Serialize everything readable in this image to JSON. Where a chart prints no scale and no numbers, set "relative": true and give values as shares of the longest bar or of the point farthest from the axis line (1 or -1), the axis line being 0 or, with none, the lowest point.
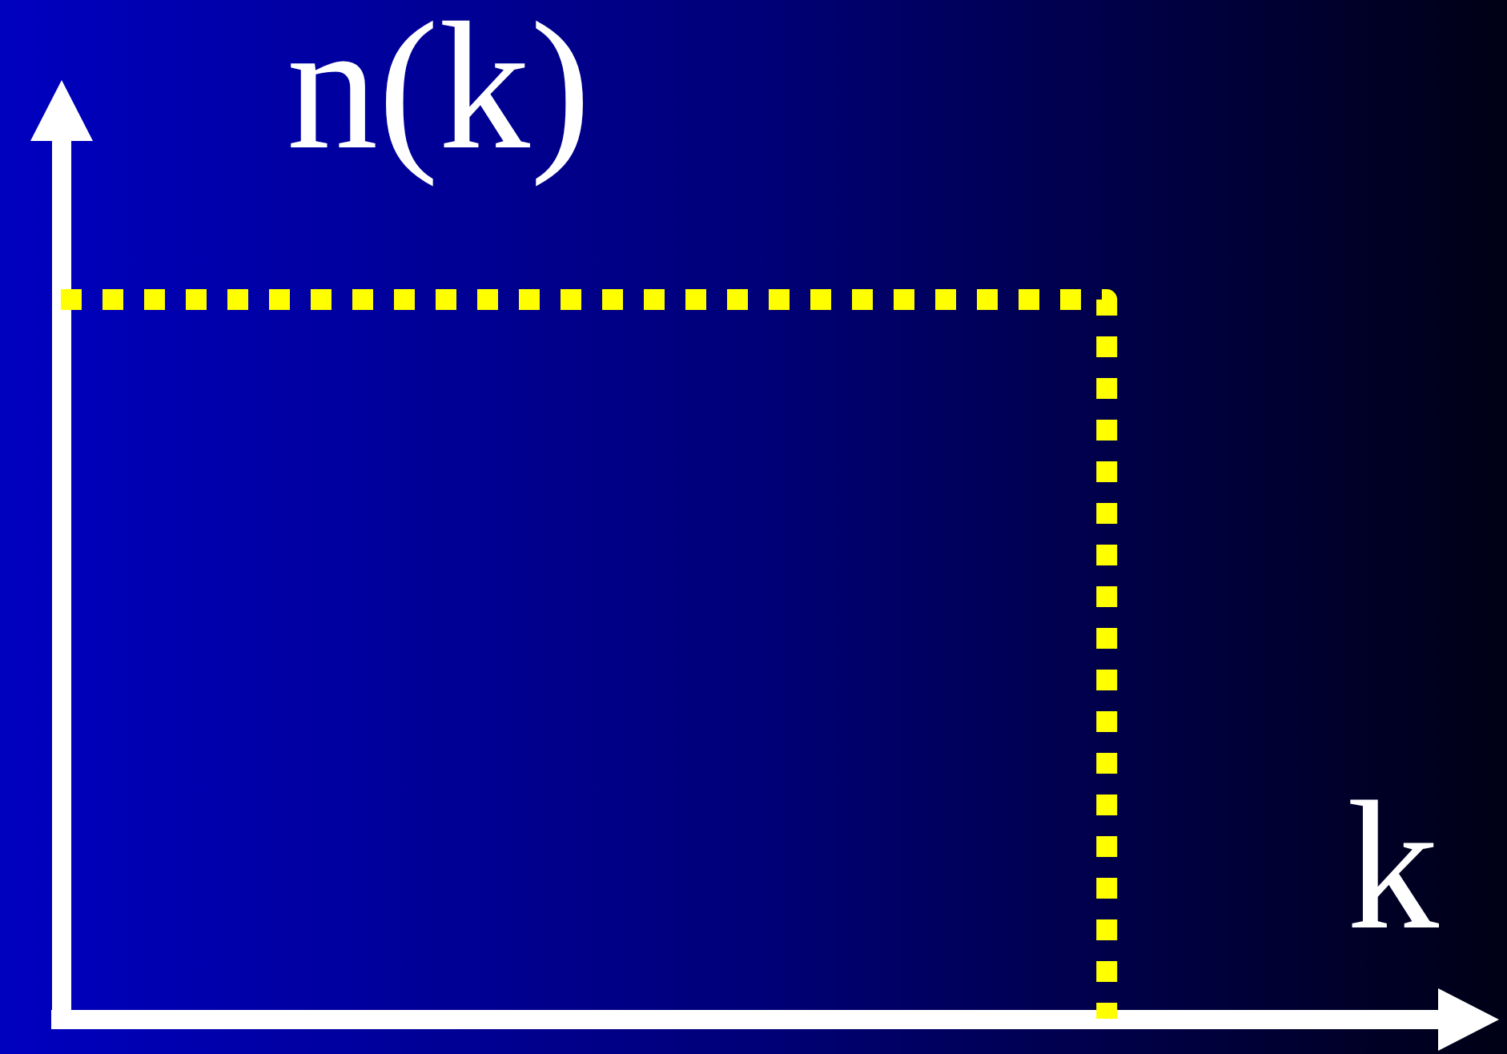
{
  "chart_data": {
    "type": "step",
    "xlabel": "k",
    "ylabel": "n(k)",
    "relative": true,
    "categories": [
      null,
      null,
      null,
      null,
      null,
      null,
      null,
      null,
      null,
      null,
      null,
      null
    ],
    "values": [
      1,
      1,
      1,
      1,
      1,
      1,
      1,
      1,
      0,
      null,
      null,
      null
    ],
    "color": "#ffff00",
    "legend": false,
    "marker": "none",
    "line_style": "dotted"
  }
}
